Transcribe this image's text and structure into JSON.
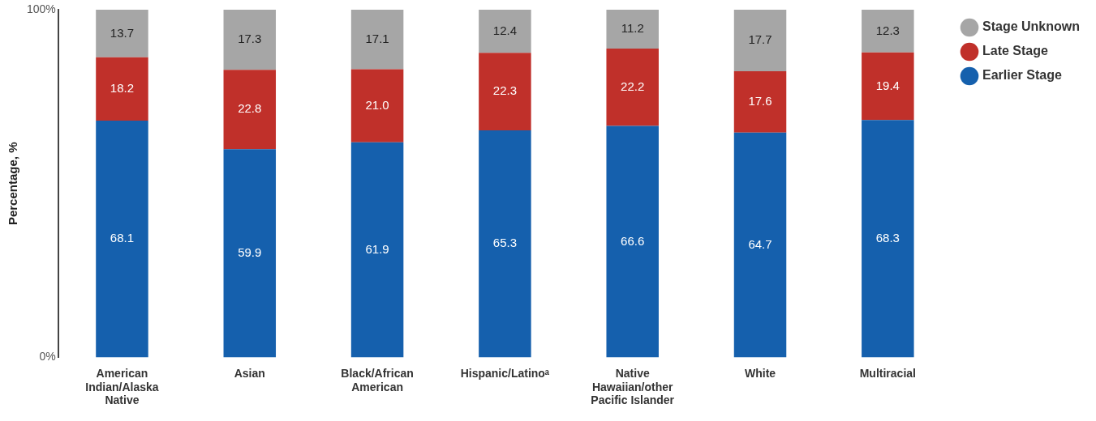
{
  "chart_data": {
    "type": "bar",
    "stacked": true,
    "ylabel": "Percentage, %",
    "categories": [
      "American Indian/Alaska Native",
      "Asian",
      "Black/African American",
      "Hispanic/Latinoᵃ",
      "Native Hawaiian/other Pacific Islander",
      "White",
      "Multiracial"
    ],
    "series": [
      {
        "name": "Earlier Stage",
        "color": "#1560ad",
        "values": [
          68.1,
          59.9,
          61.9,
          65.3,
          66.6,
          64.7,
          68.3
        ],
        "value_labels": [
          "68.1",
          "59.9",
          "61.9",
          "65.3",
          "66.6",
          "64.7",
          "68.3"
        ]
      },
      {
        "name": "Late Stage",
        "color": "#c0302a",
        "values": [
          18.2,
          22.8,
          21.0,
          22.3,
          22.2,
          17.6,
          19.4
        ],
        "value_labels": [
          "18.2",
          "22.8",
          "21.0",
          "22.3",
          "22.2",
          "17.6",
          "19.4"
        ]
      },
      {
        "name": "Stage Unknown",
        "color": "#a6a6a6",
        "values": [
          13.7,
          17.3,
          17.1,
          12.4,
          11.2,
          17.7,
          12.3
        ],
        "value_labels": [
          "13.7",
          "17.3",
          "17.1",
          "12.4",
          "11.2",
          "17.7",
          "12.3"
        ]
      }
    ],
    "ylim": [
      0,
      100
    ],
    "yticks": [
      {
        "value": 0,
        "label": "0%"
      },
      {
        "value": 100,
        "label": "100%"
      }
    ],
    "grid": false,
    "legend": "top right"
  }
}
